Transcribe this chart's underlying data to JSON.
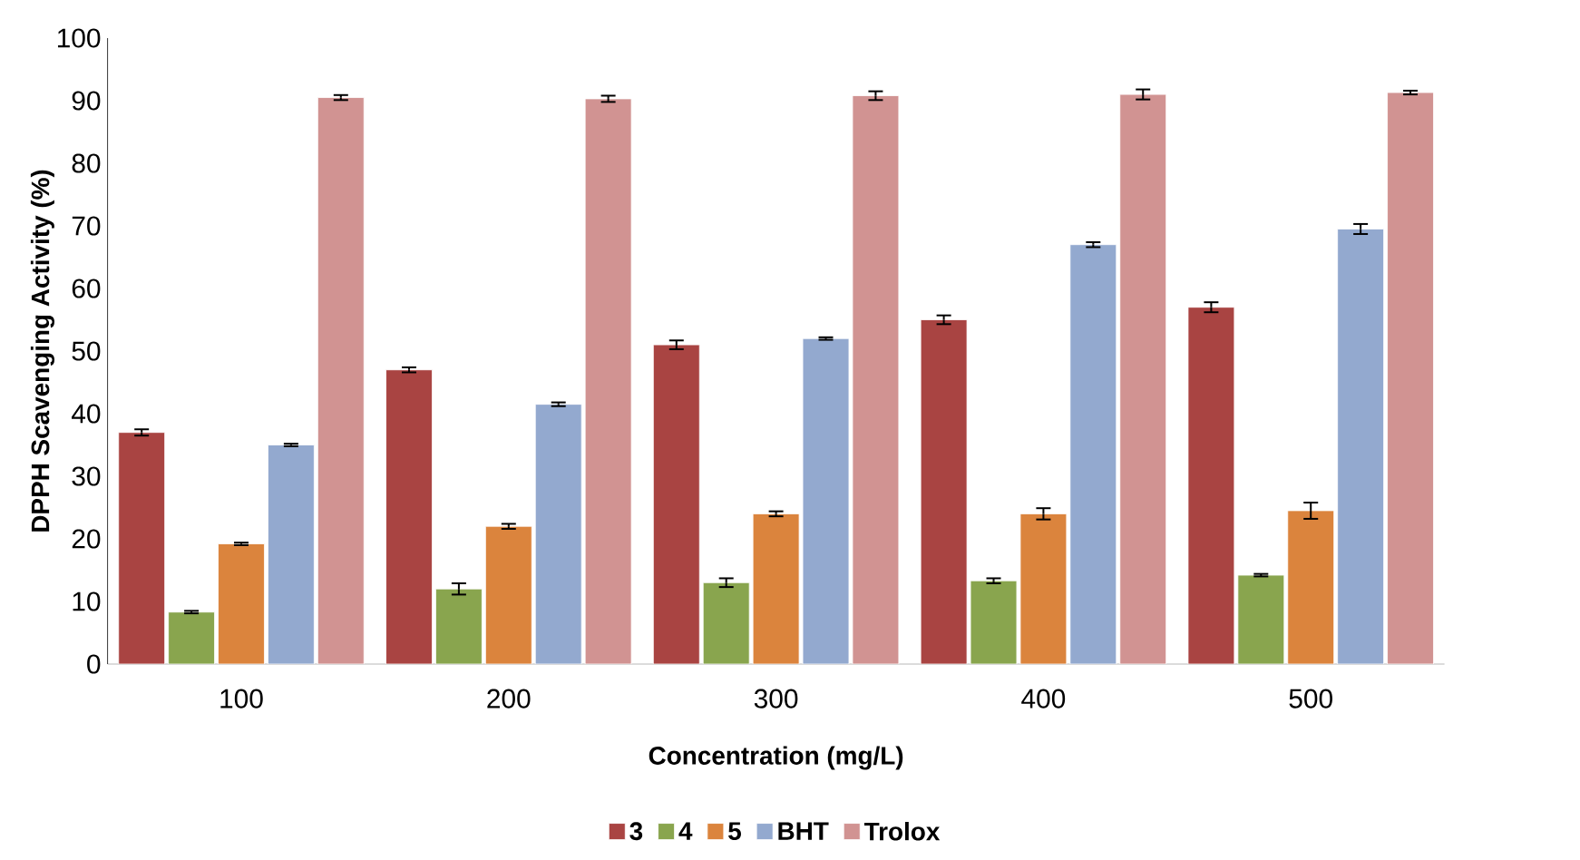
{
  "chart_data": {
    "type": "bar",
    "xlabel": "Concentration (mg/L)",
    "ylabel": "DPPH Scavenging Activity (%)",
    "categories": [
      "100",
      "200",
      "300",
      "400",
      "500"
    ],
    "series": [
      {
        "name": "3",
        "color": "#a94442",
        "values": [
          37,
          47,
          51,
          55,
          57
        ],
        "errors": [
          0.5,
          0.4,
          0.7,
          0.7,
          0.8
        ]
      },
      {
        "name": "4",
        "color": "#89a54e",
        "values": [
          8.3,
          12,
          13,
          13.3,
          14.2
        ],
        "errors": [
          0.2,
          0.9,
          0.7,
          0.4,
          0.2
        ]
      },
      {
        "name": "5",
        "color": "#db843d",
        "values": [
          19.2,
          22,
          24,
          24,
          24.5
        ],
        "errors": [
          0.2,
          0.4,
          0.4,
          0.9,
          1.3
        ]
      },
      {
        "name": "BHT",
        "color": "#93a9cf",
        "values": [
          35,
          41.5,
          52,
          67,
          69.5
        ],
        "errors": [
          0.2,
          0.3,
          0.2,
          0.4,
          0.8
        ]
      },
      {
        "name": "Trolox",
        "color": "#d19392",
        "values": [
          90.5,
          90.3,
          90.8,
          91,
          91.3
        ],
        "errors": [
          0.4,
          0.5,
          0.7,
          0.8,
          0.3
        ]
      }
    ],
    "ylim": [
      0,
      100
    ],
    "yticks": [
      0,
      10,
      20,
      30,
      40,
      50,
      60,
      70,
      80,
      90,
      100
    ],
    "legend": "bottom",
    "grid": false
  }
}
